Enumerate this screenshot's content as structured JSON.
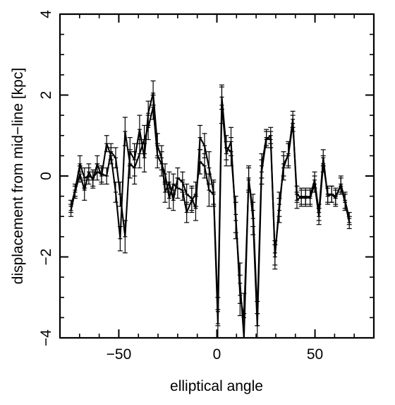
{
  "chart_data": {
    "type": "line",
    "title": "",
    "xlabel": "elliptical angle",
    "ylabel": "displacement from mid−line [kpc]",
    "xlim": [
      -80,
      80
    ],
    "ylim": [
      -4,
      4
    ],
    "xticks": [
      -50,
      0,
      50
    ],
    "xtick_labels": [
      "−50",
      "0",
      "50"
    ],
    "yticks": [
      -4,
      -2,
      0,
      2,
      4
    ],
    "ytick_labels": [
      "−4",
      "−2",
      "0",
      "2",
      "4"
    ],
    "grid": false,
    "series": [
      {
        "x": [
          -74.4,
          -72.3,
          -69.8,
          -67.5,
          -65.3,
          -63.2,
          -61.0,
          -58.8,
          -56.2,
          -54.0,
          -51.6,
          -49.3,
          -46.8,
          -44.3,
          -42.0,
          -39.4,
          -37.0,
          -35.0,
          -32.5,
          -30.3,
          -28.2,
          -26.4,
          -24.3,
          -22.2,
          -20.0,
          -17.5,
          -15.4,
          -12.8,
          -10.8,
          -8.6,
          -6.3,
          -4.0,
          -1.7,
          0.5,
          2.5,
          4.8,
          7.2,
          9.6,
          11.8,
          13.8,
          16.2,
          18.4,
          20.6,
          22.8,
          25.2,
          27.4,
          29.6,
          31.8,
          34.0,
          36.4,
          38.7,
          40.8,
          43.0,
          45.2,
          47.5,
          49.8,
          52.0,
          54.2,
          56.5,
          58.5,
          60.5,
          63.2,
          65.3,
          67.5
        ],
        "values": [
          -0.75,
          -0.35,
          0.3,
          -0.05,
          0.0,
          -0.05,
          0.1,
          0.05,
          0.0,
          0.6,
          0.45,
          -0.45,
          -1.5,
          0.6,
          0.4,
          1.15,
          0.45,
          1.55,
          2.05,
          0.75,
          0.45,
          -0.4,
          -0.15,
          -0.6,
          -0.05,
          -0.15,
          -0.45,
          -0.55,
          -0.8,
          0.95,
          0.75,
          0.2,
          -0.4,
          -3.35,
          1.95,
          0.7,
          0.6,
          -0.95,
          -2.95,
          -3.5,
          -0.1,
          -0.85,
          -3.4,
          0.25,
          0.95,
          0.9,
          -1.9,
          -0.85,
          0.3,
          0.5,
          1.3,
          -0.45,
          -0.55,
          -0.5,
          -0.55,
          -0.2,
          -1.0,
          0.3,
          -0.45,
          -0.45,
          -0.55,
          -0.2,
          -0.6,
          -1.05
        ],
        "errors": [
          0.15,
          0.15,
          0.2,
          0.25,
          0.2,
          0.2,
          0.2,
          0.2,
          0.2,
          0.2,
          0.25,
          0.3,
          0.4,
          0.35,
          0.4,
          0.35,
          0.35,
          0.3,
          0.3,
          0.3,
          0.3,
          0.25,
          0.25,
          0.25,
          0.25,
          0.25,
          0.25,
          0.3,
          0.3,
          0.3,
          0.3,
          0.4,
          0.3,
          0.35,
          0.3,
          0.3,
          0.35,
          0.45,
          0.5,
          0.6,
          0.3,
          0.4,
          0.3,
          0.3,
          0.2,
          0.2,
          0.3,
          0.3,
          0.3,
          0.3,
          0.2,
          0.2,
          0.2,
          0.2,
          0.2,
          0.2,
          0.2,
          0.2,
          0.2,
          0.2,
          0.2,
          0.2,
          0.2,
          0.15
        ]
      },
      {
        "x": [
          -74.4,
          -72.3,
          -69.8,
          -67.5,
          -65.3,
          -63.2,
          -61.0,
          -58.8,
          -56.2,
          -54.0,
          -51.6,
          -49.3,
          -46.8,
          -44.3,
          -42.0,
          -39.4,
          -37.0,
          -35.0,
          -32.5,
          -30.3,
          -28.2,
          -26.4,
          -24.3,
          -22.2,
          -20.0,
          -17.5,
          -15.4,
          -12.8,
          -10.8,
          -8.6,
          -6.3,
          -4.0,
          -1.7,
          0.5,
          2.5,
          4.8,
          7.2,
          9.6,
          11.8,
          13.8,
          16.2,
          18.4,
          20.6,
          22.8,
          25.2,
          27.4,
          29.6,
          31.8,
          34.0,
          36.4,
          38.7,
          40.8,
          43.0,
          45.2,
          47.5,
          49.8,
          52.0,
          54.2,
          56.5,
          58.5,
          60.5,
          63.2,
          65.3,
          67.5
        ],
        "values": [
          -0.85,
          -0.4,
          0.05,
          -0.35,
          0.1,
          -0.1,
          0.3,
          0.0,
          0.8,
          0.5,
          -0.4,
          -1.55,
          1.1,
          0.3,
          0.2,
          0.55,
          0.9,
          1.2,
          1.7,
          0.5,
          0.3,
          0.05,
          -0.55,
          -0.2,
          -0.3,
          -0.35,
          -0.9,
          -0.6,
          -0.45,
          0.35,
          0.25,
          -0.35,
          -0.45,
          -3.65,
          1.75,
          0.55,
          0.85,
          -1.1,
          -2.65,
          -4.0,
          -0.05,
          -1.05,
          -3.7,
          0.1,
          0.9,
          1.0,
          -2.0,
          -0.7,
          0.2,
          0.55,
          1.4,
          -0.6,
          -0.5,
          -0.55,
          -0.5,
          -0.1,
          -0.9,
          0.45,
          -0.5,
          -0.45,
          -0.5,
          -0.25,
          -0.65,
          -1.15
        ],
        "errors": [
          0.15,
          0.15,
          0.2,
          0.25,
          0.2,
          0.2,
          0.2,
          0.2,
          0.2,
          0.2,
          0.25,
          0.3,
          0.35,
          0.35,
          0.4,
          0.35,
          0.35,
          0.3,
          0.3,
          0.3,
          0.3,
          0.25,
          0.25,
          0.25,
          0.25,
          0.25,
          0.25,
          0.3,
          0.3,
          0.3,
          0.3,
          0.4,
          0.3,
          0.35,
          0.45,
          0.3,
          0.35,
          0.45,
          0.5,
          0.6,
          0.3,
          0.4,
          0.3,
          0.3,
          0.2,
          0.2,
          0.3,
          0.3,
          0.3,
          0.3,
          0.2,
          0.2,
          0.2,
          0.2,
          0.2,
          0.2,
          0.2,
          0.2,
          0.2,
          0.2,
          0.2,
          0.2,
          0.2,
          0.15
        ]
      }
    ],
    "colors": {
      "line": "#000000",
      "axes": "#000000",
      "background": "#ffffff"
    }
  }
}
